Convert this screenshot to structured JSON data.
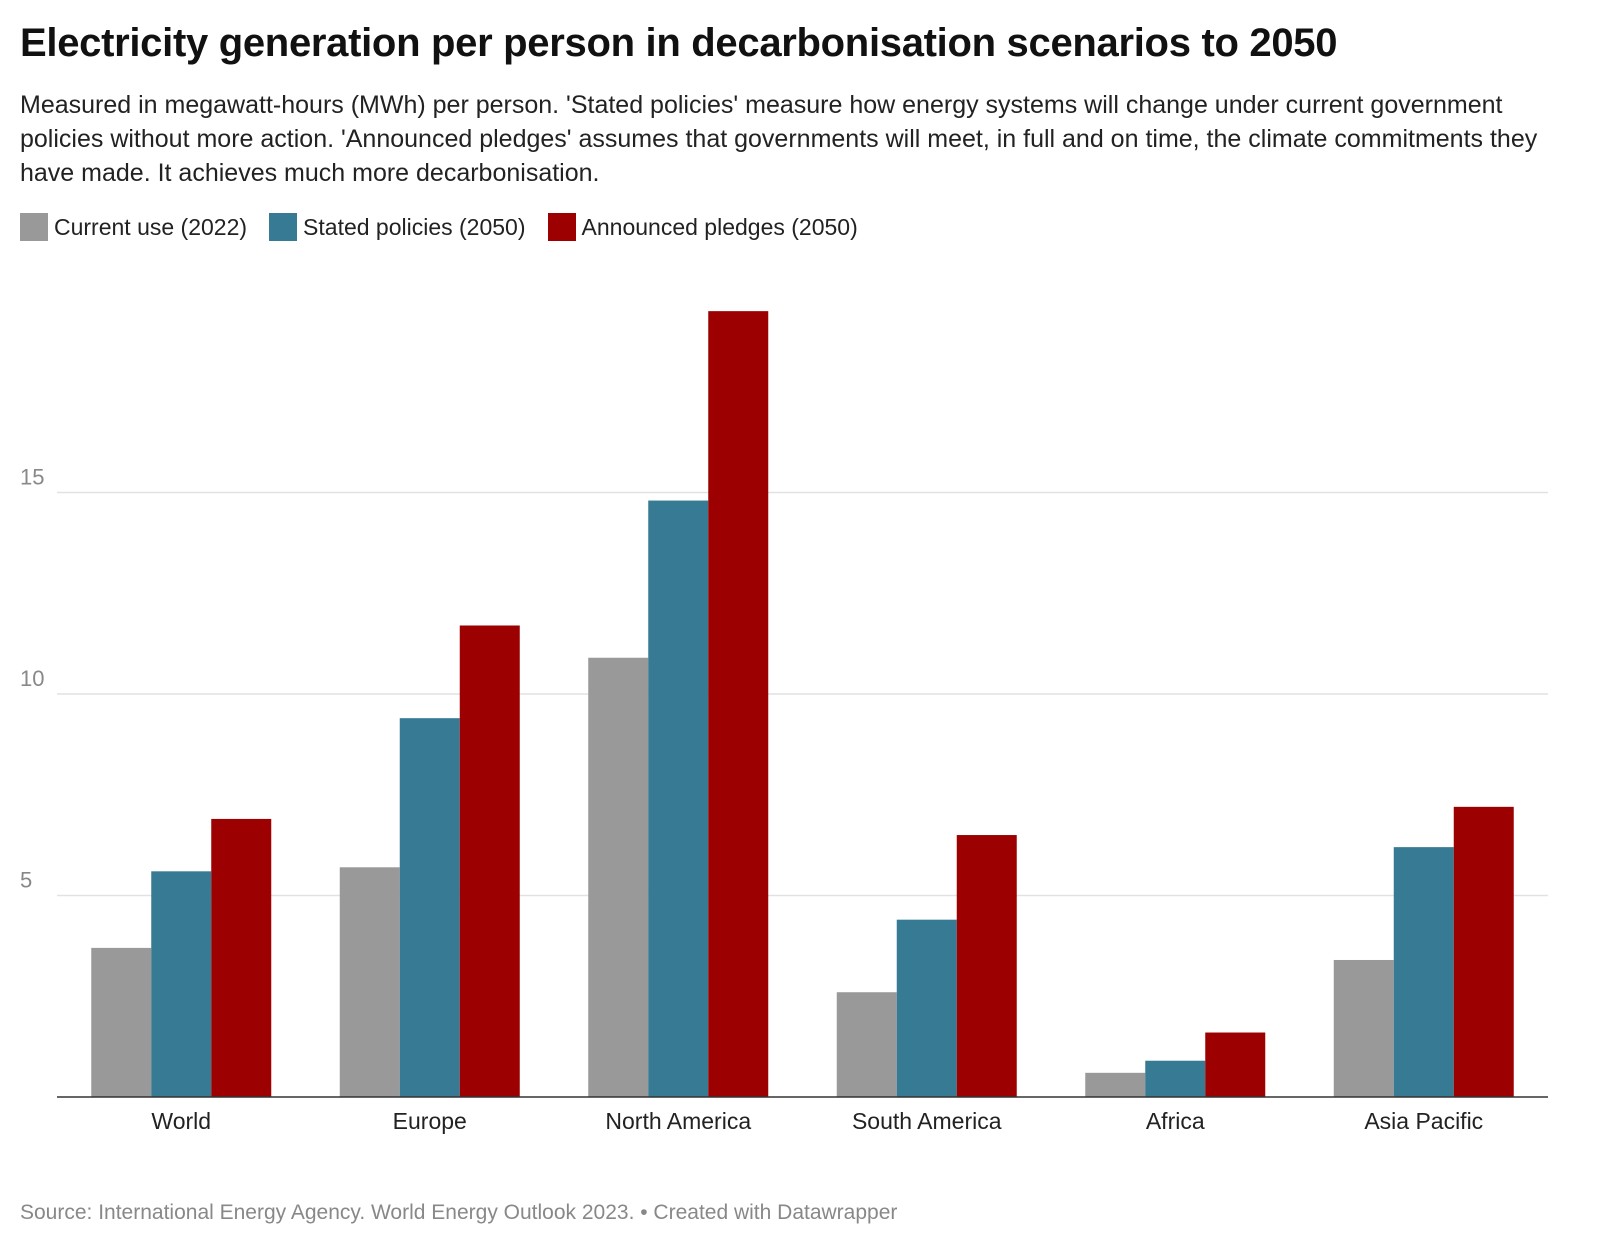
{
  "header": {
    "title": "Electricity generation per person in decarbonisation scenarios to 2050",
    "subtitle": "Measured in megawatt-hours (MWh) per person. 'Stated policies' measure how energy systems will change under current government policies without more action. 'Announced pledges' assumes that governments will meet, in full and on time, the climate commitments they have made. It achieves much more decarbonisation."
  },
  "footer": {
    "source": "Source: International Energy Agency. World Energy Outlook 2023. • Created with Datawrapper"
  },
  "chart_data": {
    "type": "bar",
    "title": "Electricity generation per person in decarbonisation scenarios to 2050",
    "xlabel": "",
    "ylabel": "",
    "categories": [
      "World",
      "Europe",
      "North America",
      "South America",
      "Africa",
      "Asia Pacific"
    ],
    "series": [
      {
        "name": "Current use (2022)",
        "color": "#999999",
        "values": [
          3.7,
          5.7,
          10.9,
          2.6,
          0.6,
          3.4
        ]
      },
      {
        "name": "Stated policies (2050)",
        "color": "#377a94",
        "values": [
          5.6,
          9.4,
          14.8,
          4.4,
          0.9,
          6.2
        ]
      },
      {
        "name": "Announced pledges (2050)",
        "color": "#9c0000",
        "values": [
          6.9,
          11.7,
          19.5,
          6.5,
          1.6,
          7.2
        ]
      }
    ],
    "yticks": [
      5,
      10,
      15
    ],
    "ylim": [
      0,
      20
    ],
    "grid": true,
    "legend": "top-left"
  }
}
